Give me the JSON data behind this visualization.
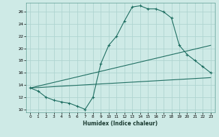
{
  "title": "",
  "xlabel": "Humidex (Indice chaleur)",
  "bg_color": "#ceeae6",
  "grid_color": "#aed4d0",
  "line_color": "#1a6b5e",
  "xlim": [
    -0.5,
    23.5
  ],
  "ylim": [
    9.5,
    27.5
  ],
  "xticks": [
    0,
    1,
    2,
    3,
    4,
    5,
    6,
    7,
    8,
    9,
    10,
    11,
    12,
    13,
    14,
    15,
    16,
    17,
    18,
    19,
    20,
    21,
    22,
    23
  ],
  "yticks": [
    10,
    12,
    14,
    16,
    18,
    20,
    22,
    24,
    26
  ],
  "series1_x": [
    0,
    1,
    2,
    3,
    4,
    5,
    6,
    7,
    8,
    9,
    10,
    11,
    12,
    13,
    14,
    15,
    16,
    17,
    18,
    19,
    20,
    21,
    22,
    23
  ],
  "series1_y": [
    13.5,
    13.0,
    12.0,
    11.5,
    11.2,
    11.0,
    10.5,
    10.0,
    12.0,
    17.5,
    20.5,
    22.0,
    24.5,
    26.8,
    27.0,
    26.5,
    26.5,
    26.0,
    25.0,
    20.5,
    19.0,
    18.0,
    17.0,
    16.0
  ],
  "series2_x": [
    0,
    23
  ],
  "series2_y": [
    13.5,
    15.2
  ],
  "series3_x": [
    0,
    23
  ],
  "series3_y": [
    13.5,
    20.5
  ],
  "markers1_x": [
    0,
    1,
    2,
    3,
    5,
    6,
    7,
    8,
    9,
    10,
    11,
    12,
    13,
    14,
    15,
    16,
    17,
    18,
    19,
    20,
    21,
    22,
    23
  ],
  "markers1_y": [
    13.5,
    13.0,
    12.0,
    11.5,
    11.0,
    10.5,
    10.0,
    12.0,
    17.5,
    20.5,
    22.0,
    24.5,
    26.8,
    27.0,
    26.5,
    26.5,
    26.0,
    25.0,
    20.5,
    19.0,
    18.0,
    17.0,
    16.0
  ]
}
